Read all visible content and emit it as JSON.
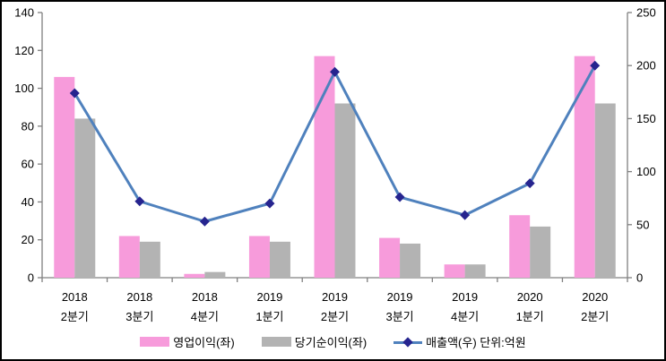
{
  "chart_data": {
    "type": "combo",
    "title": "",
    "categories": [
      [
        "2018",
        "2분기"
      ],
      [
        "2018",
        "3분기"
      ],
      [
        "2018",
        "4분기"
      ],
      [
        "2019",
        "1분기"
      ],
      [
        "2019",
        "2분기"
      ],
      [
        "2019",
        "3분기"
      ],
      [
        "2019",
        "4분기"
      ],
      [
        "2020",
        "1분기"
      ],
      [
        "2020",
        "2분기"
      ]
    ],
    "series": [
      {
        "key": "operating-profit",
        "name": "영업이익(좌)",
        "type": "bar",
        "axis": "left",
        "color": "#F79BDB",
        "values": [
          106,
          22,
          2,
          22,
          117,
          21,
          7,
          33,
          117
        ]
      },
      {
        "key": "net-profit",
        "name": "당기순이익(좌)",
        "type": "bar",
        "axis": "left",
        "color": "#B3B3B3",
        "values": [
          84,
          19,
          3,
          19,
          92,
          18,
          7,
          27,
          92
        ]
      },
      {
        "key": "revenue",
        "name": "매출액(우) 단위:억원",
        "type": "line",
        "axis": "right",
        "color": "#4F81BD",
        "marker": "diamond",
        "marker_color": "#26248F",
        "values": [
          174,
          72,
          53,
          70,
          194,
          76,
          59,
          89,
          200
        ]
      }
    ],
    "axes": {
      "left": {
        "min": 0,
        "max": 140,
        "step": 20,
        "tick_labels": [
          "0",
          "20",
          "40",
          "60",
          "80",
          "100",
          "120",
          "140"
        ]
      },
      "right": {
        "min": 0,
        "max": 250,
        "step": 50,
        "tick_labels": [
          "0",
          "50",
          "100",
          "150",
          "200",
          "250"
        ]
      }
    },
    "grid": false,
    "legend_position": "bottom"
  },
  "colors": {
    "axis": "#808080",
    "text": "#000000",
    "background": "#FFFFFF",
    "frame_border": "#000000"
  }
}
